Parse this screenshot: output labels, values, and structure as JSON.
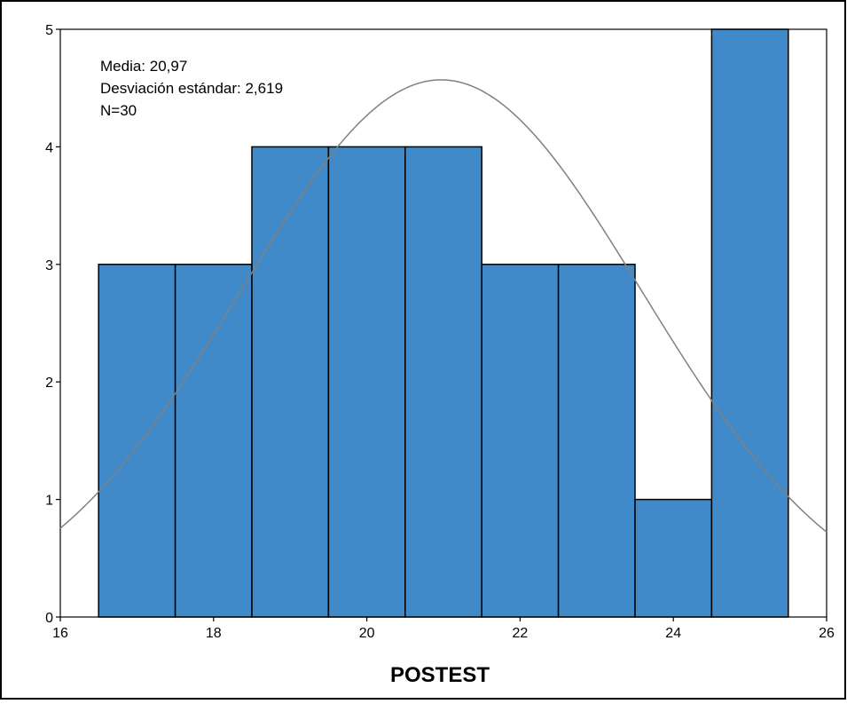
{
  "chart_data": {
    "type": "bar",
    "subtype": "histogram",
    "xlabel": "POSTEST",
    "ylabel": "",
    "title": "",
    "xlim": [
      16,
      26
    ],
    "ylim": [
      0,
      5
    ],
    "x_ticks": [
      "16",
      "18",
      "20",
      "22",
      "24",
      "26"
    ],
    "y_ticks": [
      "0",
      "1",
      "2",
      "3",
      "4",
      "5"
    ],
    "bins": [
      {
        "start": 16.5,
        "end": 17.5,
        "count": 3
      },
      {
        "start": 17.5,
        "end": 18.5,
        "count": 3
      },
      {
        "start": 18.5,
        "end": 19.5,
        "count": 4
      },
      {
        "start": 19.5,
        "end": 20.5,
        "count": 4
      },
      {
        "start": 20.5,
        "end": 21.5,
        "count": 4
      },
      {
        "start": 21.5,
        "end": 22.5,
        "count": 3
      },
      {
        "start": 22.5,
        "end": 23.5,
        "count": 3
      },
      {
        "start": 23.5,
        "end": 24.5,
        "count": 1
      },
      {
        "start": 24.5,
        "end": 25.5,
        "count": 5
      }
    ],
    "normal_curve": {
      "mean": 20.97,
      "sd": 2.619,
      "n": 30
    },
    "stats_text": [
      "Media: 20,97",
      "Desviación estándar: 2,619",
      "N=30"
    ],
    "bar_color": "#418ac9",
    "curve_color": "#808080",
    "grid": false,
    "legend": "none"
  }
}
